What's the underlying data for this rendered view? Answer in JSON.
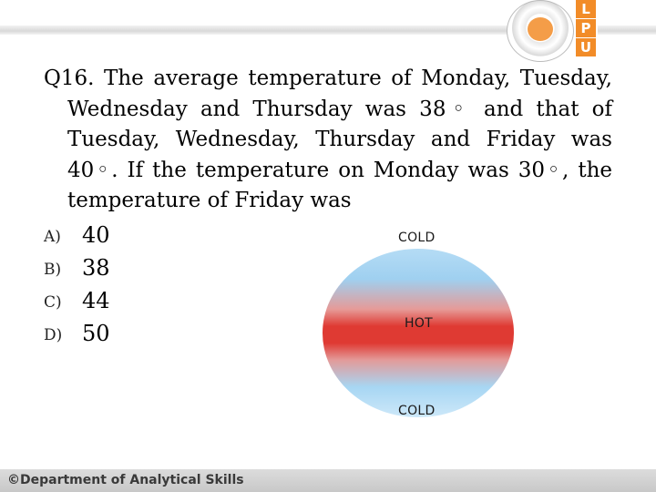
{
  "header": {
    "logo_letters": [
      "L",
      "P",
      "U"
    ],
    "brand_color": "#f28c28"
  },
  "question": {
    "lines": [
      "Q16. The average temperature of Monday, Tuesday, Wednesday and Thursday was 38◦ and that of Tuesday, Wednesday, Thursday and Friday was 40◦. If the temperature on Monday was 30◦, the temperature of Friday was"
    ]
  },
  "options": [
    {
      "label": "A)",
      "value": "40"
    },
    {
      "label": "B)",
      "value": "38"
    },
    {
      "label": "C)",
      "value": "44"
    },
    {
      "label": "D)",
      "value": "50"
    }
  ],
  "illustration": {
    "top_label": "COLD",
    "middle_label": "HOT",
    "bottom_label": "COLD"
  },
  "footer": {
    "text": "©Department of Analytical Skills"
  }
}
